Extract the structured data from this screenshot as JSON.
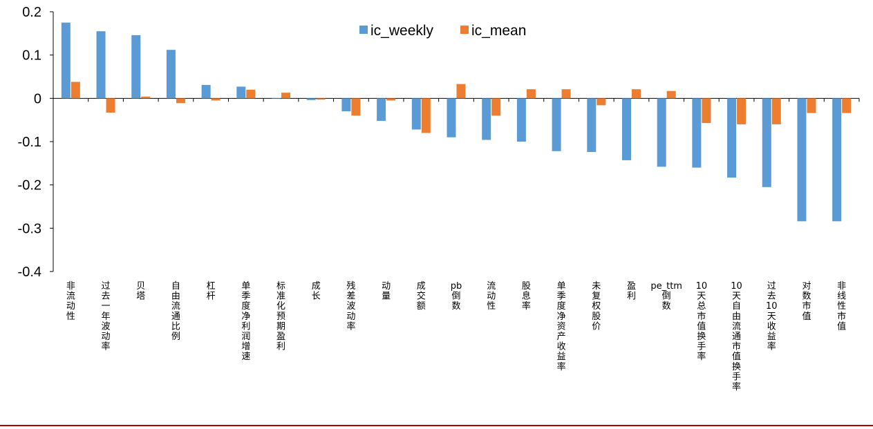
{
  "chart_data": {
    "type": "bar",
    "categories": [
      "非流动性",
      "过去一年波动率",
      "贝塔",
      "自由流通比例",
      "杠杆",
      "单季度净利润增速",
      "标准化预期盈利",
      "成长",
      "残差波动率",
      "动量",
      "成交额",
      "pb倒数",
      "流动性",
      "股息率",
      "单季度净资产收益率",
      "未复权股价",
      "盈利",
      "pe_ttm倒数",
      "10天总市值换手率",
      "10天自由流通市值换手率",
      "过去10天收益率",
      "对数市值",
      "非线性市值"
    ],
    "series": [
      {
        "name": "ic_weekly",
        "color": "#5b9bd5",
        "values": [
          0.175,
          0.155,
          0.146,
          0.112,
          0.031,
          0.027,
          -0.001,
          -0.004,
          -0.03,
          -0.052,
          -0.072,
          -0.09,
          -0.096,
          -0.1,
          -0.122,
          -0.124,
          -0.143,
          -0.158,
          -0.16,
          -0.183,
          -0.205,
          -0.284,
          -0.284
        ]
      },
      {
        "name": "ic_mean",
        "color": "#ed7d31",
        "values": [
          0.038,
          -0.033,
          0.004,
          -0.011,
          -0.005,
          0.02,
          0.013,
          -0.003,
          -0.04,
          -0.005,
          -0.08,
          0.033,
          -0.04,
          0.021,
          0.021,
          -0.016,
          0.021,
          0.017,
          -0.057,
          -0.06,
          -0.06,
          -0.034,
          -0.034
        ]
      }
    ],
    "yticks": [
      "0.2",
      "0.1",
      "0",
      "-0.1",
      "-0.2",
      "-0.3",
      "-0.4"
    ],
    "ylim": [
      -0.4,
      0.2
    ],
    "legend_position": "top-center",
    "grid": false
  }
}
